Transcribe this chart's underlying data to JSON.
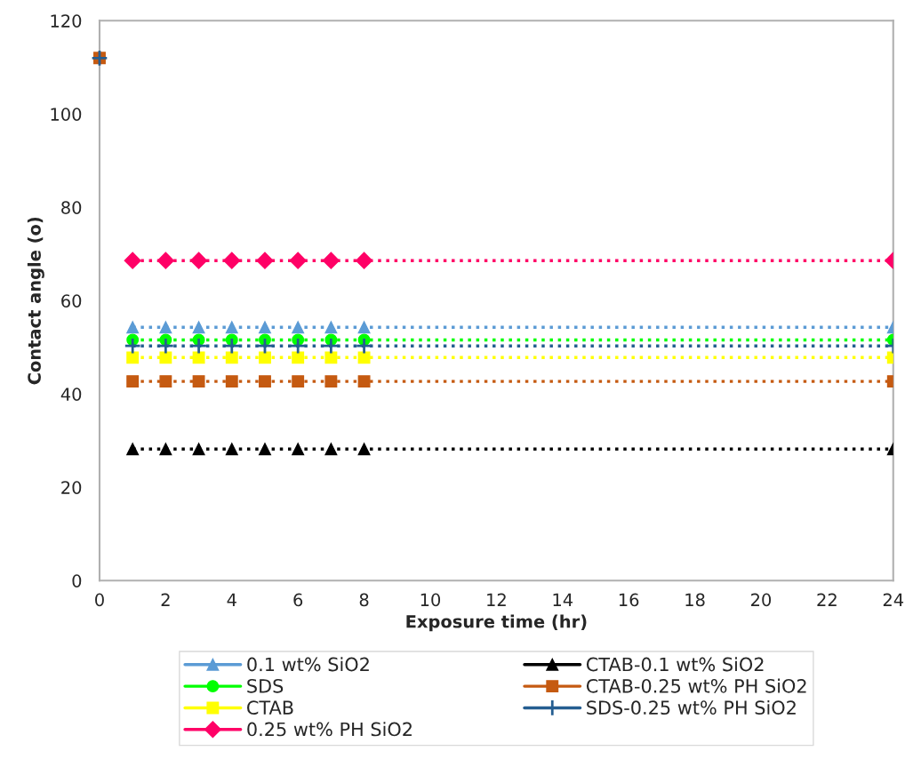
{
  "chart_data": {
    "type": "line",
    "xlabel": "Exposure time (hr)",
    "ylabel": "Contact angle (o)",
    "xlim": [
      0,
      24
    ],
    "xticks": [
      0,
      2,
      4,
      6,
      8,
      10,
      12,
      14,
      16,
      18,
      20,
      22,
      24
    ],
    "ylim": [
      0,
      120
    ],
    "yticks": [
      0,
      20,
      40,
      60,
      80,
      100,
      120
    ],
    "grid": false,
    "legend": "bottom",
    "line_style": "dotted",
    "x": [
      1,
      2,
      3,
      4,
      5,
      6,
      7,
      8,
      24
    ],
    "series": [
      {
        "name": "0.1 wt% SiO2",
        "color": "#5b9bd5",
        "marker": "triangle",
        "values": [
          54.3,
          54.3,
          54.3,
          54.3,
          54.3,
          54.3,
          54.3,
          54.3,
          54.3
        ]
      },
      {
        "name": "SDS",
        "color": "#00ff00",
        "marker": "circle",
        "values": [
          51.6,
          51.6,
          51.6,
          51.6,
          51.6,
          51.6,
          51.6,
          51.6,
          51.6
        ]
      },
      {
        "name": "CTAB",
        "color": "#ffff00",
        "marker": "square",
        "values": [
          47.8,
          47.8,
          47.8,
          47.8,
          47.8,
          47.8,
          47.8,
          47.8,
          47.8
        ]
      },
      {
        "name": "0.25 wt% PH SiO2",
        "color": "#ff0066",
        "marker": "diamond",
        "values": [
          68.6,
          68.6,
          68.6,
          68.6,
          68.6,
          68.6,
          68.6,
          68.6,
          68.6
        ]
      },
      {
        "name": "CTAB-0.1 wt% SiO2",
        "color": "#000000",
        "marker": "triangle",
        "values": [
          28.2,
          28.2,
          28.2,
          28.2,
          28.2,
          28.2,
          28.2,
          28.2,
          28.2
        ]
      },
      {
        "name": "CTAB-0.25 wt% PH SiO2",
        "color": "#c55a11",
        "marker": "square",
        "values": [
          42.7,
          42.7,
          42.7,
          42.7,
          42.7,
          42.7,
          42.7,
          42.7,
          42.7
        ]
      },
      {
        "name": "SDS-0.25 wt% PH SiO2",
        "color": "#255e91",
        "marker": "cross",
        "values": [
          50.3,
          50.3,
          50.3,
          50.3,
          50.3,
          50.3,
          50.3,
          50.3,
          50.3
        ]
      },
      {
        "type": "scatter",
        "color": "#c55a11",
        "marker": "square",
        "x": [
          0
        ],
        "values": [
          112
        ]
      },
      {
        "type": "scatter",
        "color": "#255e91",
        "marker": "cross",
        "x": [
          0
        ],
        "values": [
          112
        ]
      }
    ]
  }
}
